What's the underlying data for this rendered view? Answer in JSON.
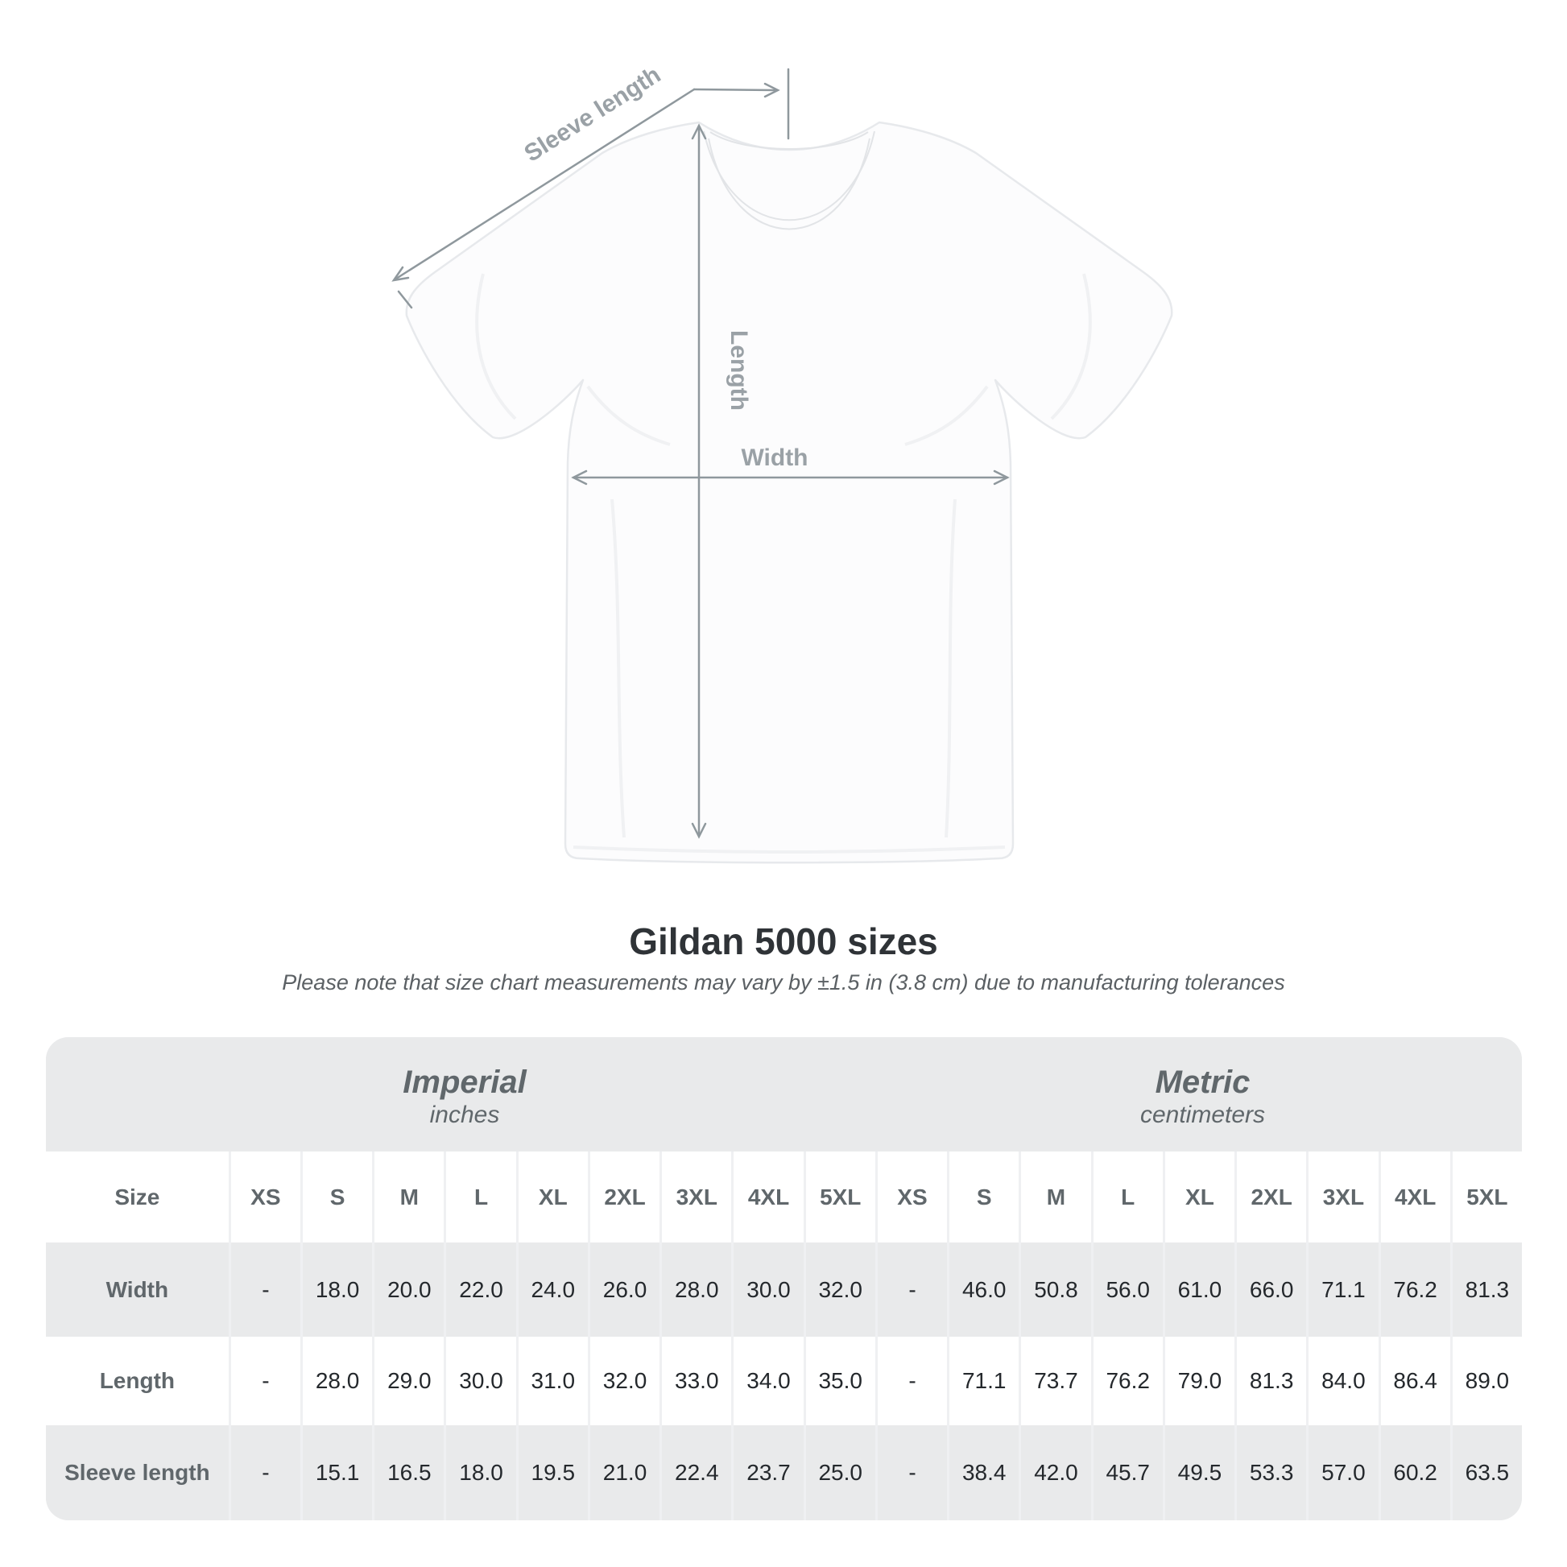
{
  "shirt_diagram": {
    "labels": {
      "sleeve_length": "Sleeve length",
      "length": "Length",
      "width": "Width"
    },
    "colors": {
      "dimension_line": "#8f989d",
      "dimension_label": "#9aa1a6",
      "shirt_outline": "#e7e9ec",
      "shirt_fill": "#fcfcfd"
    }
  },
  "title": "Gildan 5000 sizes",
  "subtitle": "Please note that size chart measurements may vary by ±1.5 in (3.8 cm) due to manufacturing tolerances",
  "table": {
    "sections": [
      {
        "title": "Imperial",
        "unit": "inches"
      },
      {
        "title": "Metric",
        "unit": "centimeters"
      }
    ],
    "size_header": "Size",
    "sizes": [
      "XS",
      "S",
      "M",
      "L",
      "XL",
      "2XL",
      "3XL",
      "4XL",
      "5XL"
    ],
    "rows": [
      {
        "label": "Width",
        "imperial": [
          "-",
          "18.0",
          "20.0",
          "22.0",
          "24.0",
          "26.0",
          "28.0",
          "30.0",
          "32.0"
        ],
        "metric": [
          "-",
          "46.0",
          "50.8",
          "56.0",
          "61.0",
          "66.0",
          "71.1",
          "76.2",
          "81.3"
        ]
      },
      {
        "label": "Length",
        "imperial": [
          "-",
          "28.0",
          "29.0",
          "30.0",
          "31.0",
          "32.0",
          "33.0",
          "34.0",
          "35.0"
        ],
        "metric": [
          "-",
          "71.1",
          "73.7",
          "76.2",
          "79.0",
          "81.3",
          "84.0",
          "86.4",
          "89.0"
        ]
      },
      {
        "label": "Sleeve length",
        "imperial": [
          "-",
          "15.1",
          "16.5",
          "18.0",
          "19.5",
          "21.0",
          "22.4",
          "23.7",
          "25.0"
        ],
        "metric": [
          "-",
          "38.4",
          "42.0",
          "45.7",
          "49.5",
          "53.3",
          "57.0",
          "60.2",
          "63.5"
        ]
      }
    ],
    "colors": {
      "band_background": "#e9eaeb",
      "alt_row_background": "#e9eaeb",
      "separator": "#eff0f2",
      "header_text": "#60676b",
      "value_text": "#24282c"
    }
  }
}
